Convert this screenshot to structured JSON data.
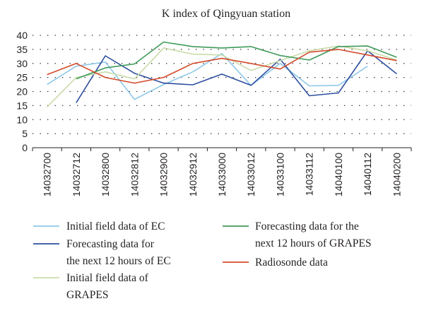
{
  "chart_data": {
    "type": "line",
    "title": "K index of Qingyuan station",
    "xlabel": "",
    "ylabel": "",
    "ylim": [
      0,
      40
    ],
    "yticks": [
      0,
      5,
      10,
      15,
      20,
      25,
      30,
      35,
      40
    ],
    "grid": true,
    "legend_position": "bottom",
    "categories": [
      "14032700",
      "14032712",
      "14032800",
      "14032812",
      "14032900",
      "14032912",
      "14033000",
      "14033012",
      "14033100",
      "14033112",
      "14040100",
      "14040112",
      "14040200"
    ],
    "series": [
      {
        "name": "Initial field data of EC",
        "color": "#8ec8e8",
        "legend_lines": [
          "Initial field data of EC"
        ],
        "values": [
          22.5,
          29,
          30.5,
          17.2,
          22.5,
          27,
          33.5,
          22.2,
          30,
          22,
          22.2,
          29,
          null
        ]
      },
      {
        "name": "Forecasting data for the next 12 hours of EC",
        "color": "#2e4f9f",
        "legend_lines": [
          "Forecasting data for",
          "the next 12 hours of EC"
        ],
        "values": [
          null,
          16,
          32.7,
          26.5,
          23,
          22.4,
          26.2,
          22.2,
          31.5,
          18.5,
          19.5,
          34.5,
          26.3
        ]
      },
      {
        "name": "Initial field data of GRAPES",
        "color": "#c9dba8",
        "legend_lines": [
          "Initial field data of",
          "GRAPES"
        ],
        "values": [
          14.5,
          25,
          27,
          24.5,
          35.5,
          33.3,
          33,
          27.5,
          31,
          34.5,
          36.2,
          34.5,
          31.2
        ]
      },
      {
        "name": "Forecasting data for the next 12 hours of GRAPES",
        "color": "#3f9a5a",
        "legend_lines": [
          "Forecasting data for the",
          "next 12 hours of GRAPES"
        ],
        "values": [
          null,
          24.5,
          28.4,
          29.8,
          37.6,
          36,
          35.5,
          36,
          32.8,
          31.2,
          36,
          36.2,
          32.2
        ]
      },
      {
        "name": "Radiosonde data",
        "color": "#d4492a",
        "legend_lines": [
          "Radiosonde data"
        ],
        "values": [
          26,
          30,
          25,
          23,
          25,
          30,
          31.8,
          30,
          28,
          34,
          35,
          33,
          31
        ]
      }
    ]
  }
}
